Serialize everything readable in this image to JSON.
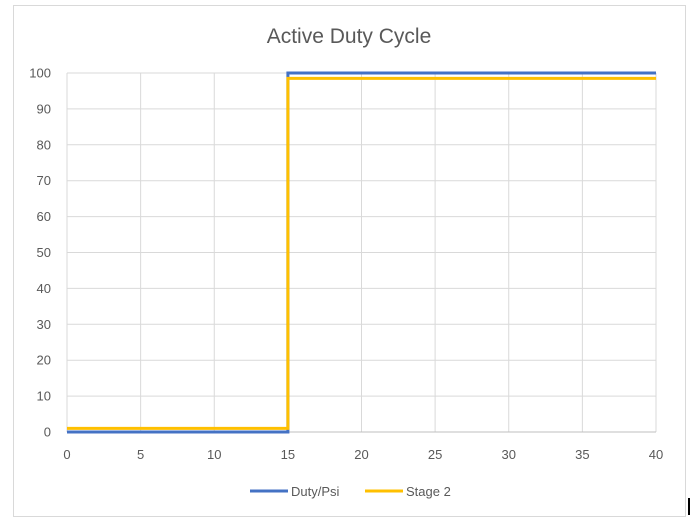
{
  "chart_data": {
    "type": "line",
    "title": "Active Duty Cycle",
    "xlabel": "",
    "ylabel": "",
    "xlim": [
      0,
      40
    ],
    "ylim": [
      0,
      100
    ],
    "x_ticks": [
      0,
      5,
      10,
      15,
      20,
      25,
      30,
      35,
      40
    ],
    "y_ticks": [
      0,
      10,
      20,
      30,
      40,
      50,
      60,
      70,
      80,
      90,
      100
    ],
    "grid": true,
    "legend_position": "bottom",
    "series": [
      {
        "name": "Duty/Psi",
        "color": "#4472c4",
        "x": [
          0,
          15,
          15,
          40
        ],
        "y": [
          0,
          0,
          100,
          100
        ]
      },
      {
        "name": "Stage 2",
        "color": "#ffc000",
        "x": [
          0,
          15,
          15,
          40
        ],
        "y": [
          1,
          1,
          98.5,
          98.5
        ]
      }
    ]
  }
}
